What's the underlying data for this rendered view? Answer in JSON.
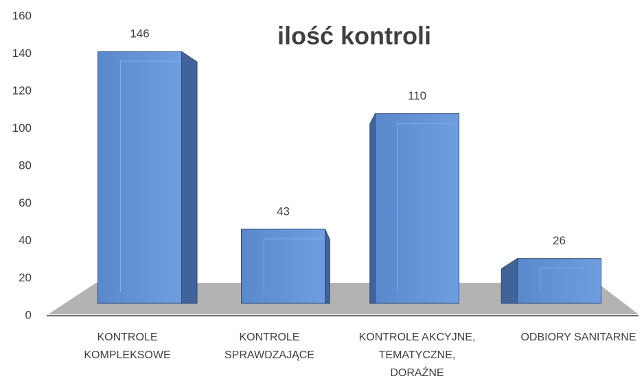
{
  "chart_data": {
    "type": "bar3d",
    "title": "ilość kontroli",
    "categories": [
      "KONTROLE KOMPLEKSOWE",
      "KONTROLE SPRAWDZAJĄCE",
      "KONTROLE AKCYJNE, TEMATYCZNE, DORAŹNE",
      "ODBIORY SANITARNE"
    ],
    "values": [
      146,
      43,
      110,
      26
    ],
    "color": "#5f8fd3",
    "ylim": [
      0,
      160
    ],
    "yticks": [
      0,
      20,
      40,
      60,
      80,
      100,
      120,
      140,
      160
    ]
  }
}
